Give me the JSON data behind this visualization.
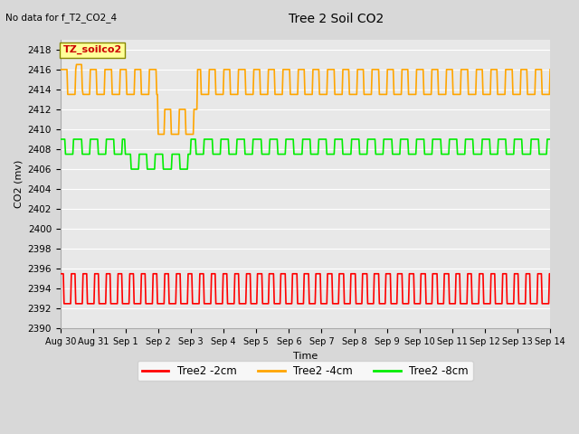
{
  "title": "Tree 2 Soil CO2",
  "no_data_text": "No data for f_T2_CO2_4",
  "xlabel": "Time",
  "ylabel": "CO2 (mv)",
  "ylim": [
    2390,
    2419
  ],
  "yticks": [
    2390,
    2392,
    2394,
    2396,
    2398,
    2400,
    2402,
    2404,
    2406,
    2408,
    2410,
    2412,
    2414,
    2416,
    2418
  ],
  "xtick_labels": [
    "Aug 30",
    "Aug 31",
    "Sep 1",
    "Sep 2",
    "Sep 3",
    "Sep 4",
    "Sep 5",
    "Sep 6",
    "Sep 7",
    "Sep 8",
    "Sep 9",
    "Sep 10",
    "Sep 11",
    "Sep 12",
    "Sep 13",
    "Sep 14"
  ],
  "bg_color": "#d8d8d8",
  "plot_bg_color": "#e8e8e8",
  "grid_color": "#ffffff",
  "annotation_text": "TZ_soilco2",
  "annotation_bg": "#ffff99",
  "annotation_fg": "#cc0000",
  "legend_labels": [
    "Tree2 -2cm",
    "Tree2 -4cm",
    "Tree2 -8cm"
  ],
  "legend_colors": [
    "#ff0000",
    "#ffa500",
    "#00ee00"
  ],
  "line_width": 1.2,
  "n_points": 672
}
